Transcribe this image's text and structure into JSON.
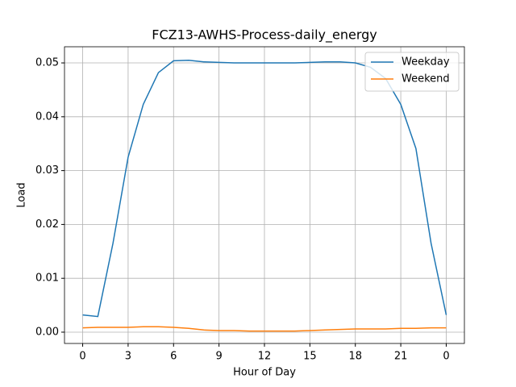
{
  "chart_data": {
    "type": "line",
    "title": "FCZ13-AWHS-Process-daily_energy",
    "xlabel": "Hour of Day",
    "ylabel": "Load",
    "x": [
      0,
      1,
      2,
      3,
      4,
      5,
      6,
      7,
      8,
      9,
      10,
      11,
      12,
      13,
      14,
      15,
      16,
      17,
      18,
      19,
      20,
      21,
      22,
      23,
      24
    ],
    "series": [
      {
        "name": "Weekday",
        "color": "#1f77b4",
        "values": [
          0.0032,
          0.0029,
          0.0165,
          0.0325,
          0.0423,
          0.0482,
          0.0504,
          0.0505,
          0.0502,
          0.0501,
          0.05,
          0.05,
          0.05,
          0.05,
          0.05,
          0.0501,
          0.0502,
          0.0502,
          0.05,
          0.0492,
          0.0471,
          0.0423,
          0.0341,
          0.0165,
          0.0032
        ]
      },
      {
        "name": "Weekend",
        "color": "#ff7f0e",
        "values": [
          0.0008,
          0.0009,
          0.0009,
          0.0009,
          0.001,
          0.001,
          0.0009,
          0.0007,
          0.0004,
          0.0003,
          0.0003,
          0.0002,
          0.0002,
          0.0002,
          0.0002,
          0.0003,
          0.0004,
          0.0005,
          0.0006,
          0.0006,
          0.0006,
          0.0007,
          0.0007,
          0.0008,
          0.0008
        ]
      }
    ],
    "xlim": [
      -1.2,
      25.2
    ],
    "ylim": [
      -0.0021,
      0.053
    ],
    "xticks": [
      0,
      3,
      6,
      9,
      12,
      15,
      18,
      21,
      {
        "value": 24,
        "label": "0"
      }
    ],
    "yticks": [
      {
        "value": 0,
        "label": "0.00"
      },
      0.01,
      0.02,
      0.03,
      0.04,
      0.05
    ],
    "grid": true,
    "legend": "upper-right"
  }
}
